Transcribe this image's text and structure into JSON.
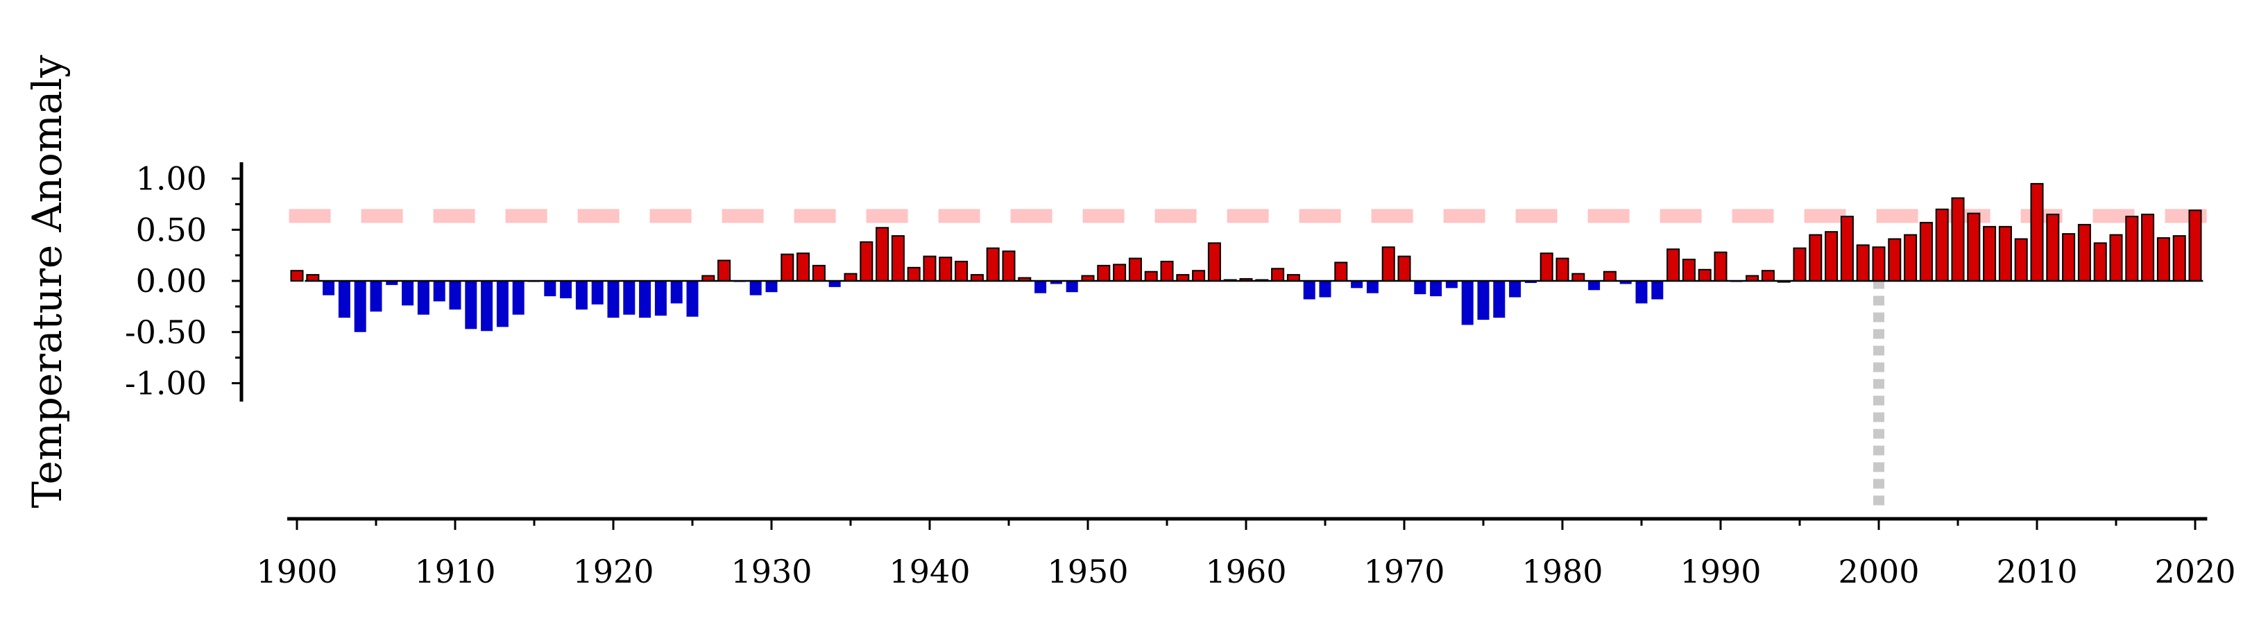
{
  "chart_data": {
    "type": "bar",
    "title": "",
    "xlabel": "",
    "ylabel": "Temperature Anomaly",
    "xlim": [
      1899.5,
      2020.5
    ],
    "ylim": [
      -1.18,
      1.16
    ],
    "grid": false,
    "legend": "none",
    "x_ticks": [
      {
        "value": 1900,
        "label": "1900"
      },
      {
        "value": 1910,
        "label": "1910"
      },
      {
        "value": 1920,
        "label": "1920"
      },
      {
        "value": 1930,
        "label": "1930"
      },
      {
        "value": 1940,
        "label": "1940"
      },
      {
        "value": 1950,
        "label": "1950"
      },
      {
        "value": 1960,
        "label": "1960"
      },
      {
        "value": 1970,
        "label": "1970"
      },
      {
        "value": 1980,
        "label": "1980"
      },
      {
        "value": 1990,
        "label": "1990"
      },
      {
        "value": 2000,
        "label": "2000"
      },
      {
        "value": 2010,
        "label": "2010"
      },
      {
        "value": 2020,
        "label": "2020"
      }
    ],
    "y_ticks": [
      {
        "value": 1.0,
        "label": "1.00"
      },
      {
        "value": 0.5,
        "label": "0.50"
      },
      {
        "value": 0.0,
        "label": "0.00"
      },
      {
        "value": -0.5,
        "label": "-0.50"
      },
      {
        "value": -1.0,
        "label": "-1.00"
      }
    ],
    "y_minor_ticks": [
      0.75,
      0.25,
      -0.25,
      -0.75
    ],
    "x_minor_step": 5,
    "colors": {
      "positive": "#d40000",
      "negative": "#0000cc",
      "bar_edge": "#000000",
      "reference_line": "#ffc4c4",
      "vertical_marker": "#c8c8c8",
      "axis": "#000000"
    },
    "reference_lines": [
      {
        "orientation": "horizontal",
        "y": 0.635,
        "style": "dashed"
      },
      {
        "orientation": "vertical",
        "x": 2000,
        "style": "dotted"
      }
    ],
    "x": [
      1900,
      1901,
      1902,
      1903,
      1904,
      1905,
      1906,
      1907,
      1908,
      1909,
      1910,
      1911,
      1912,
      1913,
      1914,
      1915,
      1916,
      1917,
      1918,
      1919,
      1920,
      1921,
      1922,
      1923,
      1924,
      1925,
      1926,
      1927,
      1928,
      1929,
      1930,
      1931,
      1932,
      1933,
      1934,
      1935,
      1936,
      1937,
      1938,
      1939,
      1940,
      1941,
      1942,
      1943,
      1944,
      1945,
      1946,
      1947,
      1948,
      1949,
      1950,
      1951,
      1952,
      1953,
      1954,
      1955,
      1956,
      1957,
      1958,
      1959,
      1960,
      1961,
      1962,
      1963,
      1964,
      1965,
      1966,
      1967,
      1968,
      1969,
      1970,
      1971,
      1972,
      1973,
      1974,
      1975,
      1976,
      1977,
      1978,
      1979,
      1980,
      1981,
      1982,
      1983,
      1984,
      1985,
      1986,
      1987,
      1988,
      1989,
      1990,
      1991,
      1992,
      1993,
      1994,
      1995,
      1996,
      1997,
      1998,
      1999,
      2000,
      2001,
      2002,
      2003,
      2004,
      2005,
      2006,
      2007,
      2008,
      2009,
      2010,
      2011,
      2012,
      2013,
      2014,
      2015,
      2016,
      2017,
      2018,
      2019,
      2020
    ],
    "values": [
      0.1,
      0.06,
      -0.14,
      -0.36,
      -0.5,
      -0.3,
      -0.04,
      -0.24,
      -0.33,
      -0.2,
      -0.28,
      -0.47,
      -0.49,
      -0.45,
      -0.33,
      -0.01,
      -0.15,
      -0.17,
      -0.28,
      -0.23,
      -0.36,
      -0.33,
      -0.36,
      -0.34,
      -0.22,
      -0.35,
      0.05,
      0.2,
      -0.01,
      -0.14,
      -0.11,
      0.26,
      0.27,
      0.15,
      -0.06,
      0.07,
      0.38,
      0.52,
      0.44,
      0.13,
      0.24,
      0.23,
      0.19,
      0.06,
      0.32,
      0.29,
      0.03,
      -0.12,
      -0.03,
      -0.11,
      0.05,
      0.15,
      0.16,
      0.22,
      0.09,
      0.19,
      0.06,
      0.1,
      0.37,
      0.01,
      0.02,
      0.01,
      0.12,
      0.06,
      -0.18,
      -0.16,
      0.18,
      -0.07,
      -0.12,
      0.33,
      0.24,
      -0.13,
      -0.15,
      -0.07,
      -0.43,
      -0.38,
      -0.36,
      -0.16,
      -0.02,
      0.27,
      0.22,
      0.07,
      -0.09,
      0.09,
      -0.03,
      -0.22,
      -0.18,
      0.31,
      0.21,
      0.11,
      0.28,
      -0.01,
      0.05,
      0.1,
      0.0,
      0.32,
      0.45,
      0.48,
      0.63,
      0.35,
      0.33,
      0.41,
      0.45,
      0.57,
      0.7,
      0.81,
      0.66,
      0.53,
      0.53,
      0.41,
      0.95,
      0.65,
      0.46,
      0.55,
      0.37,
      0.45,
      0.63,
      0.65,
      0.42,
      0.44,
      0.69
    ]
  }
}
